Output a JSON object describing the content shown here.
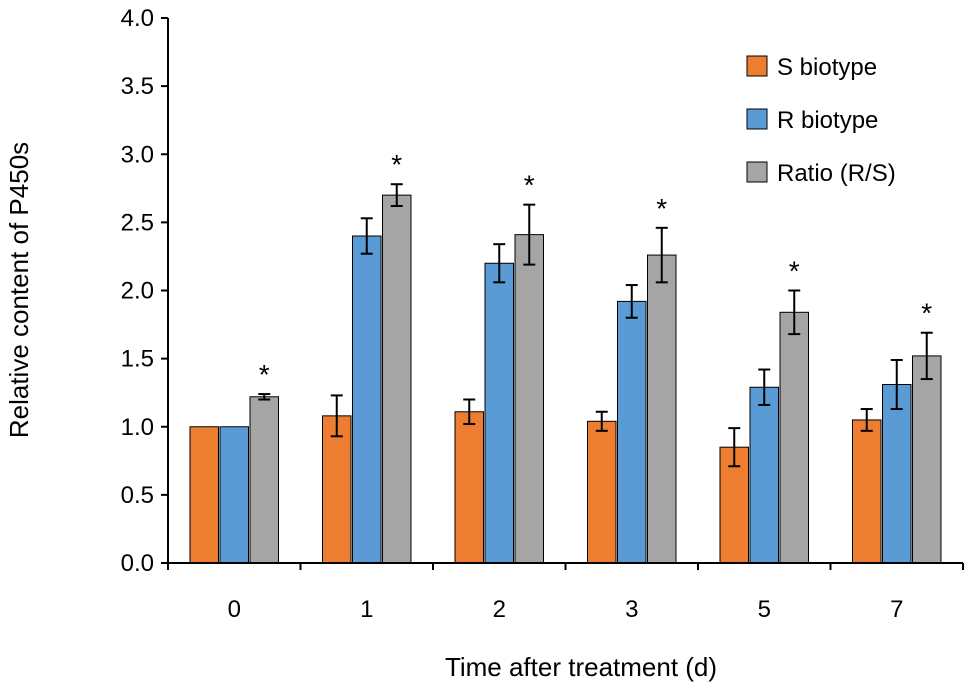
{
  "chart_data": {
    "type": "bar",
    "title": "",
    "xlabel": "Time after treatment (d)",
    "ylabel": "Relative content of P450s",
    "ylim": [
      0,
      4.0
    ],
    "yticks": [
      "0.0",
      "0.5",
      "1.0",
      "1.5",
      "2.0",
      "2.5",
      "3.0",
      "3.5",
      "4.0"
    ],
    "categories": [
      "0",
      "1",
      "2",
      "3",
      "5",
      "7"
    ],
    "legend_position": "top-right",
    "series": [
      {
        "name": "S biotype",
        "color": "#ED7D31",
        "values": [
          1.0,
          1.08,
          1.11,
          1.04,
          0.85,
          1.05
        ],
        "errors": [
          0.0,
          0.15,
          0.09,
          0.07,
          0.14,
          0.08
        ]
      },
      {
        "name": "R biotype",
        "color": "#5B9BD5",
        "values": [
          1.0,
          2.4,
          2.2,
          1.92,
          1.29,
          1.31
        ],
        "errors": [
          0.0,
          0.13,
          0.14,
          0.12,
          0.13,
          0.18
        ]
      },
      {
        "name": "Ratio (R/S)",
        "color": "#A5A5A5",
        "values": [
          1.22,
          2.7,
          2.41,
          2.26,
          1.84,
          1.52
        ],
        "errors": [
          0.02,
          0.08,
          0.22,
          0.2,
          0.16,
          0.17
        ]
      }
    ],
    "significance": [
      "*",
      "*",
      "*",
      "*",
      "*",
      "*"
    ]
  }
}
